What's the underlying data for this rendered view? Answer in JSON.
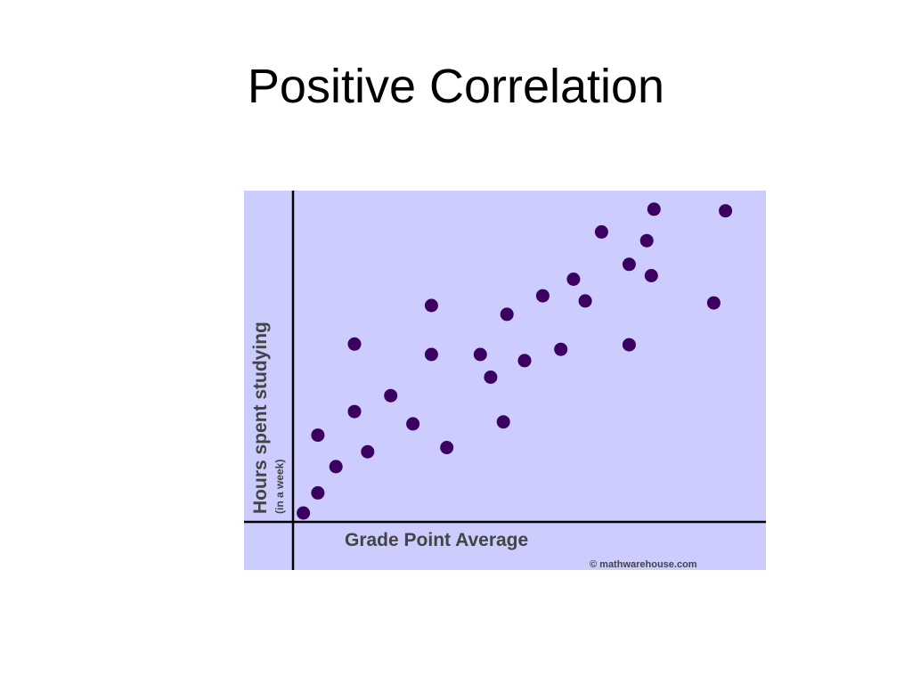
{
  "slide": {
    "title": "Positive Correlation"
  },
  "chart_data": {
    "type": "scatter",
    "xlabel": "Grade Point Average",
    "ylabel": "Hours spent studying",
    "ylabel_note": "(in a week)",
    "credit": "© mathwarehouse.com",
    "xlim": [
      0,
      100
    ],
    "ylim": [
      0,
      100
    ],
    "grid": false,
    "legend": "none",
    "colors": {
      "background": "#ccccff",
      "axis": "#000000",
      "point": "#3b0060",
      "label": "#444444"
    },
    "points": [
      {
        "x": 1.7,
        "y": 2.2
      },
      {
        "x": 4.9,
        "y": 8.4
      },
      {
        "x": 4.9,
        "y": 26.2
      },
      {
        "x": 8.9,
        "y": 16.5
      },
      {
        "x": 13.0,
        "y": 54.3
      },
      {
        "x": 13.0,
        "y": 33.5
      },
      {
        "x": 15.9,
        "y": 21.1
      },
      {
        "x": 21.0,
        "y": 38.4
      },
      {
        "x": 25.9,
        "y": 29.7
      },
      {
        "x": 30.0,
        "y": 66.2
      },
      {
        "x": 30.0,
        "y": 51.1
      },
      {
        "x": 33.4,
        "y": 22.4
      },
      {
        "x": 40.8,
        "y": 51.1
      },
      {
        "x": 43.1,
        "y": 44.1
      },
      {
        "x": 45.9,
        "y": 30.3
      },
      {
        "x": 46.7,
        "y": 63.5
      },
      {
        "x": 50.6,
        "y": 49.2
      },
      {
        "x": 54.6,
        "y": 69.2
      },
      {
        "x": 58.6,
        "y": 52.7
      },
      {
        "x": 61.4,
        "y": 74.3
      },
      {
        "x": 64.0,
        "y": 67.6
      },
      {
        "x": 67.6,
        "y": 88.9
      },
      {
        "x": 73.7,
        "y": 78.9
      },
      {
        "x": 73.7,
        "y": 54.1
      },
      {
        "x": 77.6,
        "y": 86.2
      },
      {
        "x": 78.6,
        "y": 75.4
      },
      {
        "x": 79.2,
        "y": 95.9
      },
      {
        "x": 92.4,
        "y": 67.0
      },
      {
        "x": 95.0,
        "y": 95.4
      }
    ]
  }
}
